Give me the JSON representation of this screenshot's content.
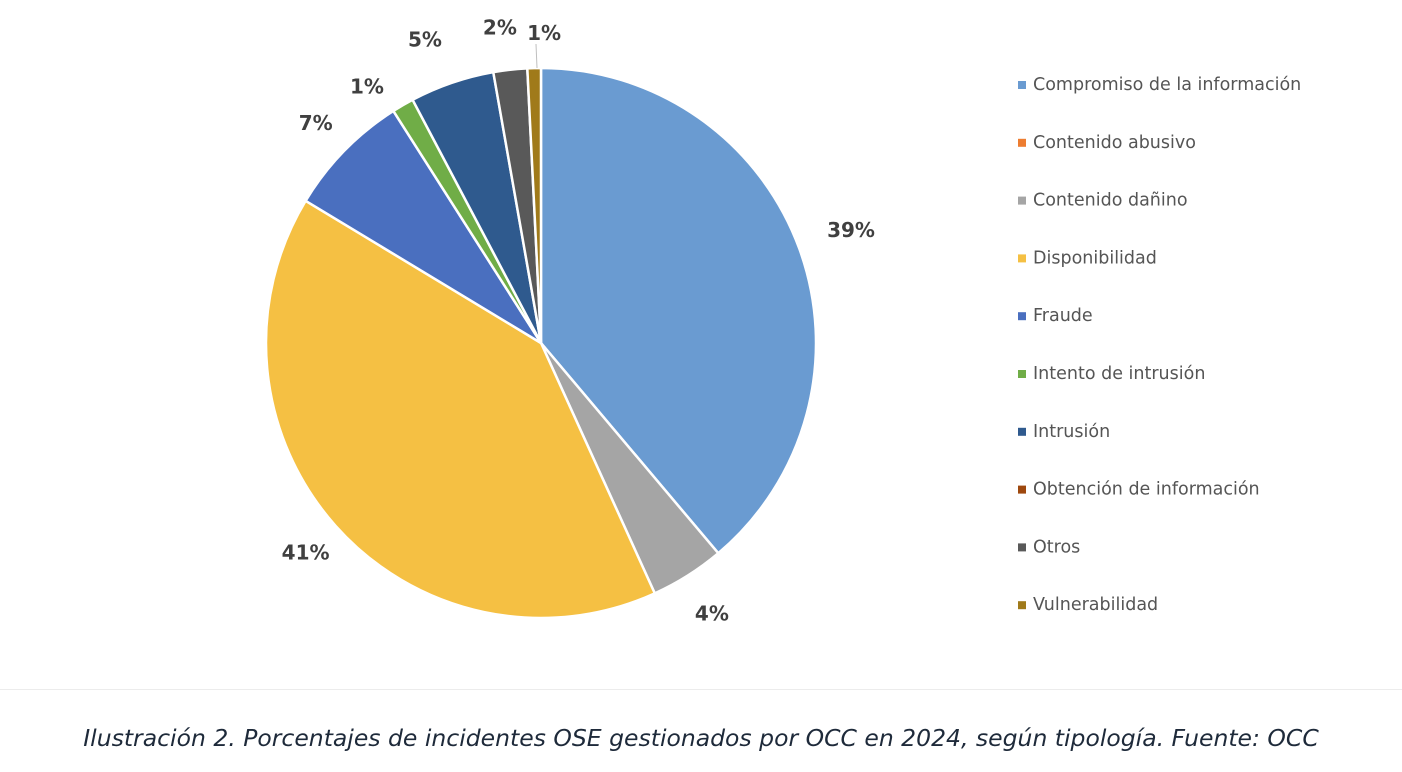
{
  "chart_data": {
    "type": "pie",
    "title": "",
    "categories": [
      "Compromiso de la información",
      "Contenido abusivo",
      "Contenido dañino",
      "Disponibilidad",
      "Fraude",
      "Intento de intrusión",
      "Intrusión",
      "Obtención de información",
      "Otros",
      "Vulnerabilidad"
    ],
    "values": [
      39.2,
      0,
      4.4,
      40.8,
      7.4,
      1.3,
      5.0,
      0,
      2.0,
      0.8
    ],
    "data_labels": [
      "39%",
      "",
      "4%",
      "41%",
      "7%",
      "1%",
      "5%",
      "",
      "2%",
      "1%"
    ],
    "colors": [
      "#6a9bd1",
      "#ed7d31",
      "#a5a5a5",
      "#f5c043",
      "#4a6fbf",
      "#70ad47",
      "#2f5a8e",
      "#9e480e",
      "#595959",
      "#a07a1a"
    ],
    "legend_position": "right"
  },
  "caption": "Ilustración 2. Porcentajes de incidentes OSE gestionados por OCC en 2024, según tipología. Fuente: OCC"
}
